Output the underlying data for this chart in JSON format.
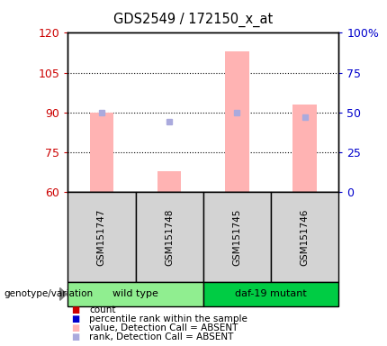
{
  "title": "GDS2549 / 172150_x_at",
  "samples": [
    "GSM151747",
    "GSM151748",
    "GSM151745",
    "GSM151746"
  ],
  "groups": [
    {
      "name": "wild type",
      "color": "#90ee90",
      "samples": [
        0,
        1
      ]
    },
    {
      "name": "daf-19 mutant",
      "color": "#00cc44",
      "samples": [
        2,
        3
      ]
    }
  ],
  "ylim_left": [
    60,
    120
  ],
  "ylim_right": [
    0,
    100
  ],
  "yticks_left": [
    60,
    75,
    90,
    105,
    120
  ],
  "yticks_right": [
    0,
    25,
    50,
    75,
    100
  ],
  "ytick_labels_right": [
    "0",
    "25",
    "50",
    "75",
    "100%"
  ],
  "bar_values": [
    90.0,
    68.0,
    113.0,
    93.0
  ],
  "rank_values": [
    50.0,
    44.0,
    50.0,
    47.0
  ],
  "bar_color_absent": "#ffb3b3",
  "rank_color_absent": "#aaaadd",
  "bar_width": 0.35,
  "left_ylabel_color": "#cc0000",
  "right_ylabel_color": "#0000cc",
  "legend_items": [
    {
      "color": "#cc0000",
      "label": "count"
    },
    {
      "color": "#0000cc",
      "label": "percentile rank within the sample"
    },
    {
      "color": "#ffb3b3",
      "label": "value, Detection Call = ABSENT"
    },
    {
      "color": "#aaaadd",
      "label": "rank, Detection Call = ABSENT"
    }
  ],
  "genotype_label": "genotype/variation",
  "background_color": "#ffffff",
  "plot_bg_color": "#ffffff",
  "sample_box_color": "#d3d3d3"
}
